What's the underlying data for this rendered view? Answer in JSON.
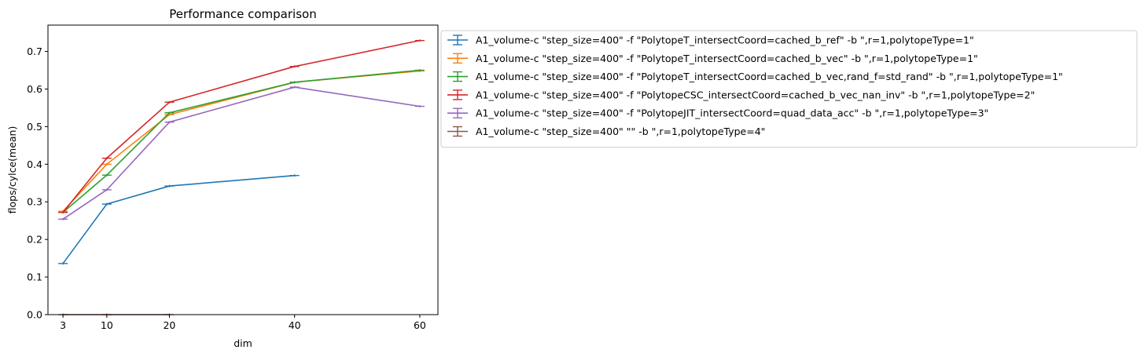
{
  "chart_data": {
    "type": "line",
    "title": "Performance comparison",
    "xlabel": "dim",
    "ylabel": "flops/cylce(mean)",
    "x_ticks": [
      3,
      10,
      20,
      40,
      60
    ],
    "y_ticks": [
      "0.0",
      "0.1",
      "0.2",
      "0.3",
      "0.4",
      "0.5",
      "0.6",
      "0.7"
    ],
    "xlim": [
      0.6,
      62.9
    ],
    "ylim": [
      0,
      0.77
    ],
    "grid": false,
    "legend_position": "outside-right-top",
    "error_bars": true,
    "series": [
      {
        "name": "A1_volume-c \"step_size=400\" -f \"PolytopeT_intersectCoord=cached_b_ref\" -b \",r=1,polytopeType=1\"",
        "color": "#1f77b4",
        "x": [
          3,
          10,
          20,
          40
        ],
        "y": [
          0.136,
          0.294,
          0.342,
          0.37
        ]
      },
      {
        "name": "A1_volume-c \"step_size=400\" -f \"PolytopeT_intersectCoord=cached_b_vec\" -b \",r=1,polytopeType=1\"",
        "color": "#ff7f0e",
        "x": [
          3,
          10,
          20,
          40,
          60
        ],
        "y": [
          0.275,
          0.4,
          0.532,
          0.618,
          0.648
        ]
      },
      {
        "name": "A1_volume-c \"step_size=400\" -f \"PolytopeT_intersectCoord=cached_b_vec,rand_f=std_rand\" -b \",r=1,polytopeType=1\"",
        "color": "#2ca02c",
        "x": [
          3,
          10,
          20,
          40,
          60
        ],
        "y": [
          0.272,
          0.371,
          0.537,
          0.618,
          0.65
        ]
      },
      {
        "name": "A1_volume-c \"step_size=400\" -f \"PolytopeCSC_intersectCoord=cached_b_vec_nan_inv\" -b \",r=1,polytopeType=2\"",
        "color": "#d62728",
        "x": [
          3,
          10,
          20,
          40,
          60
        ],
        "y": [
          0.272,
          0.416,
          0.565,
          0.66,
          0.729
        ]
      },
      {
        "name": "A1_volume-c \"step_size=400\" -f \"PolytopeJIT_intersectCoord=quad_data_acc\" -b \",r=1,polytopeType=3\"",
        "color": "#9467bd",
        "x": [
          3,
          10,
          20,
          40,
          60
        ],
        "y": [
          0.254,
          0.332,
          0.512,
          0.605,
          0.554
        ]
      },
      {
        "name": "A1_volume-c \"step_size=400\"  \"\" -b \",r=1,polytopeType=4\"",
        "color": "#8c564b",
        "x": [
          3,
          10,
          20
        ],
        "y": [
          0.0,
          0.0,
          0.0
        ]
      }
    ]
  }
}
